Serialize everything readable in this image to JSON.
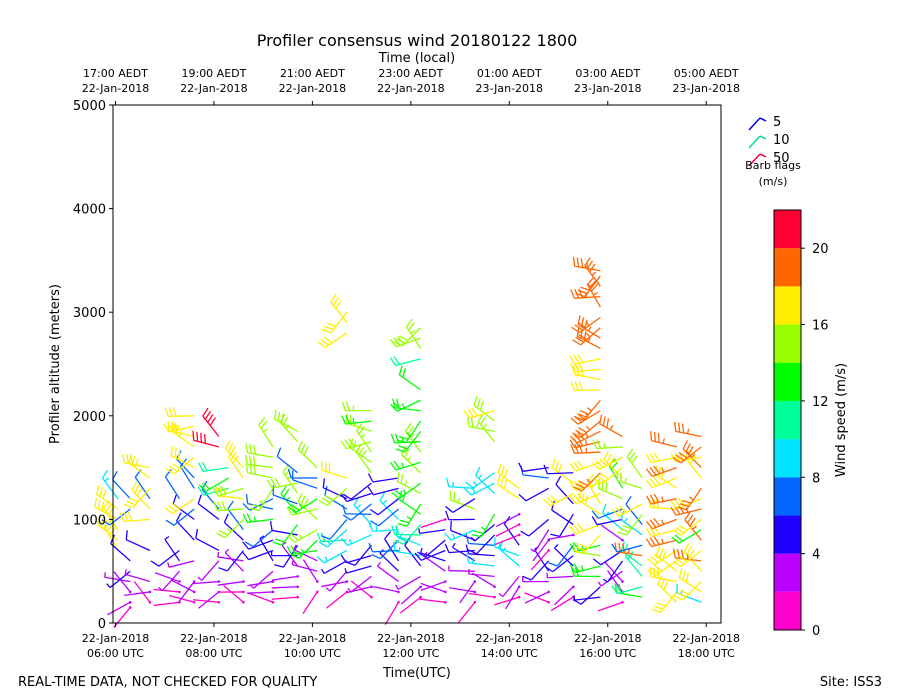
{
  "chart_data": {
    "type": "wind-barb-time-height",
    "title": "Profiler consensus wind 20180122 1800",
    "top_axis_label": "Time (local)",
    "top_ticks": [
      {
        "t": 6,
        "line1": "17:00 AEDT",
        "line2": "22-Jan-2018"
      },
      {
        "t": 8,
        "line1": "19:00 AEDT",
        "line2": "22-Jan-2018"
      },
      {
        "t": 10,
        "line1": "21:00 AEDT",
        "line2": "22-Jan-2018"
      },
      {
        "t": 12,
        "line1": "23:00 AEDT",
        "line2": "22-Jan-2018"
      },
      {
        "t": 14,
        "line1": "01:00 AEDT",
        "line2": "23-Jan-2018"
      },
      {
        "t": 16,
        "line1": "03:00 AEDT",
        "line2": "23-Jan-2018"
      },
      {
        "t": 18,
        "line1": "05:00 AEDT",
        "line2": "23-Jan-2018"
      }
    ],
    "bottom_ticks": [
      {
        "t": 6,
        "line1": "22-Jan-2018",
        "line2": "06:00 UTC"
      },
      {
        "t": 8,
        "line1": "22-Jan-2018",
        "line2": "08:00 UTC"
      },
      {
        "t": 10,
        "line1": "22-Jan-2018",
        "line2": "10:00 UTC"
      },
      {
        "t": 12,
        "line1": "22-Jan-2018",
        "line2": "12:00 UTC"
      },
      {
        "t": 14,
        "line1": "22-Jan-2018",
        "line2": "14:00 UTC"
      },
      {
        "t": 16,
        "line1": "22-Jan-2018",
        "line2": "16:00 UTC"
      },
      {
        "t": 18,
        "line1": "22-Jan-2018",
        "line2": "18:00 UTC"
      }
    ],
    "xlabel": "Time(UTC)",
    "ylabel": "Profiler altitude (meters)",
    "x_range_hours": [
      5.95,
      18.3
    ],
    "ylim": [
      0,
      5000
    ],
    "yticks": [
      0,
      1000,
      2000,
      3000,
      4000,
      5000
    ],
    "legend": {
      "entries": [
        {
          "label": "5",
          "color": "#0000ee"
        },
        {
          "label": "10",
          "color": "#00dd88"
        },
        {
          "label": "50",
          "color": "#ff0033"
        }
      ],
      "title_line1": "Barb flags",
      "title_line2": "(m/s)",
      "position": "right"
    },
    "colorbar": {
      "label": "Wind speed (m/s)",
      "range": [
        0,
        22
      ],
      "ticks": [
        0,
        4,
        8,
        12,
        16,
        20
      ],
      "bins": [
        {
          "from": 0,
          "to": 2,
          "color": "#ff00cc"
        },
        {
          "from": 2,
          "to": 4,
          "color": "#bb00ff"
        },
        {
          "from": 4,
          "to": 6,
          "color": "#2200ff"
        },
        {
          "from": 6,
          "to": 8,
          "color": "#0066ff"
        },
        {
          "from": 8,
          "to": 10,
          "color": "#00e5ff"
        },
        {
          "from": 10,
          "to": 12,
          "color": "#00ff99"
        },
        {
          "from": 12,
          "to": 14,
          "color": "#00ff00"
        },
        {
          "from": 14,
          "to": 16,
          "color": "#99ff00"
        },
        {
          "from": 16,
          "to": 18,
          "color": "#ffee00"
        },
        {
          "from": 18,
          "to": 20,
          "color": "#ff6600"
        },
        {
          "from": 20,
          "to": 22,
          "color": "#ff0033"
        }
      ]
    },
    "series": [
      {
        "t": 6.05,
        "alt": [
          700,
          800,
          900,
          1000,
          1100,
          1200
        ],
        "speed": [
          16,
          16,
          17,
          17,
          16,
          8
        ]
      },
      {
        "t": 6.3,
        "alt": [
          150,
          200,
          300,
          400,
          500,
          600,
          1100,
          1200
        ],
        "speed": [
          1,
          2,
          2,
          3,
          4,
          5,
          7,
          7
        ]
      },
      {
        "t": 6.7,
        "alt": [
          200,
          300,
          400,
          700,
          1000,
          1100,
          1200,
          1300,
          1400,
          1500
        ],
        "speed": [
          1,
          2,
          3,
          5,
          16,
          16,
          7,
          16,
          17,
          16
        ]
      },
      {
        "t": 7.3,
        "alt": [
          200,
          300,
          400,
          500,
          600,
          700,
          1200
        ],
        "speed": [
          1,
          1,
          2,
          3,
          4,
          5,
          6
        ]
      },
      {
        "t": 7.6,
        "alt": [
          200,
          300,
          400,
          600,
          800,
          1000,
          1100,
          1200,
          1300,
          1400,
          1500,
          1600,
          1700,
          1800,
          1900,
          2000
        ],
        "speed": [
          1,
          2,
          2,
          3,
          5,
          5,
          6,
          16,
          6,
          6,
          17,
          16,
          16,
          17,
          17,
          16
        ]
      },
      {
        "t": 8.1,
        "alt": [
          200,
          300,
          400,
          600,
          700,
          1000,
          1100,
          1700,
          1800
        ],
        "speed": [
          1,
          2,
          2,
          3,
          5,
          5,
          6,
          21,
          21
        ]
      },
      {
        "t": 8.3,
        "alt": [
          1300,
          1400,
          1500
        ],
        "speed": [
          11,
          12,
          11
        ]
      },
      {
        "t": 8.6,
        "alt": [
          200,
          300,
          400,
          500,
          600,
          700,
          800,
          900,
          1000,
          1100,
          1200,
          1300,
          1400,
          1500
        ],
        "speed": [
          1,
          1,
          2,
          3,
          3,
          5,
          5,
          6,
          14,
          15,
          16,
          15,
          16,
          17
        ]
      },
      {
        "t": 9.2,
        "alt": [
          200,
          300,
          400,
          500,
          600,
          700,
          800,
          900,
          1000,
          1100,
          1200,
          1300,
          1400,
          1500,
          1600,
          1700
        ],
        "speed": [
          1,
          2,
          2,
          3,
          4,
          5,
          5,
          7,
          13,
          6,
          6,
          14,
          15,
          15,
          15,
          14
        ]
      },
      {
        "t": 9.7,
        "alt": [
          250,
          350,
          450,
          550,
          650,
          750,
          850,
          950,
          1050,
          1150,
          1250,
          1350,
          1450,
          1750,
          1850
        ],
        "speed": [
          1,
          2,
          2,
          3,
          4,
          5,
          5,
          12,
          13,
          6,
          14,
          15,
          6,
          14,
          15
        ]
      },
      {
        "t": 10.1,
        "alt": [
          300,
          400,
          500,
          600,
          700,
          800,
          900,
          1000,
          1100,
          1200,
          1300,
          1400,
          1500
        ],
        "speed": [
          1,
          2,
          3,
          3,
          12,
          13,
          14,
          15,
          14,
          13,
          6,
          6,
          15
        ]
      },
      {
        "t": 10.7,
        "alt": [
          300,
          400,
          500,
          600,
          700,
          800,
          900,
          1000,
          1100,
          1200,
          1300,
          1400,
          2800,
          2900,
          3000
        ],
        "speed": [
          1,
          2,
          3,
          4,
          9,
          10,
          8,
          7,
          6,
          5,
          15,
          16,
          17,
          17,
          16
        ]
      },
      {
        "t": 11.2,
        "alt": [
          250,
          350,
          450,
          550,
          650,
          750,
          850,
          950,
          1050,
          1150,
          1250,
          1350,
          1450,
          1550,
          1650,
          1750,
          1850,
          1950,
          2050
        ],
        "speed": [
          1,
          2,
          3,
          4,
          5,
          5,
          8,
          9,
          6,
          6,
          5,
          5,
          15,
          14,
          14,
          15,
          14,
          13,
          14
        ]
      },
      {
        "t": 11.75,
        "alt": [
          200,
          300,
          400,
          500,
          600,
          700,
          800,
          900,
          1000,
          1100,
          1200,
          1300,
          1400
        ],
        "speed": [
          1,
          2,
          3,
          4,
          5,
          6,
          7,
          8,
          9,
          6,
          5,
          5,
          5
        ]
      },
      {
        "t": 12.2,
        "alt": [
          250,
          350,
          450,
          550,
          650,
          750,
          850,
          950,
          1050,
          1150,
          1250,
          1350,
          1450,
          1550,
          1650,
          1750,
          1850,
          1950,
          2050,
          2150,
          2250,
          2550,
          2650,
          2750,
          2850
        ],
        "speed": [
          1,
          2,
          3,
          5,
          8,
          9,
          10,
          11,
          12,
          13,
          14,
          13,
          14,
          13,
          14,
          13,
          12,
          13,
          12,
          13,
          12,
          11,
          14,
          15,
          15
        ]
      },
      {
        "t": 12.7,
        "alt": [
          200,
          300,
          400,
          500,
          600,
          700,
          800,
          900,
          1000
        ],
        "speed": [
          1,
          2,
          2,
          3,
          4,
          5,
          5,
          4,
          1
        ]
      },
      {
        "t": 13.3,
        "alt": [
          200,
          300,
          400,
          500,
          600,
          700,
          800,
          900,
          1000,
          1100,
          1200,
          1300
        ],
        "speed": [
          1,
          2,
          2,
          3,
          4,
          5,
          5,
          8,
          5,
          14,
          5,
          8
        ]
      },
      {
        "t": 13.7,
        "alt": [
          250,
          350,
          450,
          550,
          650,
          750,
          850,
          950,
          1050,
          1250,
          1350,
          1450,
          1750,
          1850,
          1950,
          2050
        ],
        "speed": [
          1,
          2,
          3,
          8,
          5,
          6,
          5,
          4,
          13,
          8,
          8,
          8,
          14,
          14,
          15,
          16
        ]
      },
      {
        "t": 14.2,
        "alt": [
          250,
          350,
          450,
          550,
          650,
          750,
          850,
          950,
          1050,
          1200,
          1300
        ],
        "speed": [
          1,
          2,
          3,
          8,
          8,
          5,
          1,
          1,
          2,
          17,
          16
        ]
      },
      {
        "t": 14.8,
        "alt": [
          200,
          300,
          400,
          500,
          600,
          700,
          800,
          900,
          1000,
          1300,
          1400,
          1500
        ],
        "speed": [
          1,
          2,
          3,
          4,
          5,
          1,
          2,
          3,
          5,
          5,
          6,
          5
        ]
      },
      {
        "t": 15.3,
        "alt": [
          250,
          350,
          450,
          550,
          650,
          750,
          850,
          950,
          1050,
          1150,
          1250,
          1350,
          1450
        ],
        "speed": [
          1,
          2,
          3,
          4,
          5,
          6,
          2,
          5,
          5,
          5,
          16,
          16,
          5
        ]
      },
      {
        "t": 15.85,
        "alt": [
          250,
          350,
          450,
          550,
          650,
          750,
          850,
          950,
          1050,
          1150,
          1250,
          1350,
          1450,
          1550,
          1650,
          1750,
          1850,
          1950,
          2050,
          2150,
          2250,
          2350,
          2450,
          2550,
          2650,
          2750,
          2850,
          2950,
          3050,
          3150,
          3250,
          3350,
          3400
        ],
        "speed": [
          4,
          5,
          12,
          13,
          14,
          13,
          16,
          16,
          17,
          17,
          16,
          17,
          18,
          16,
          18,
          19,
          18,
          19,
          18,
          19,
          17,
          16,
          17,
          17,
          19,
          19,
          19,
          19,
          19,
          19,
          19,
          19,
          19
        ]
      },
      {
        "t": 16.3,
        "alt": [
          200,
          300,
          400,
          500,
          600,
          700,
          800,
          900,
          1000,
          1100,
          1200,
          1300,
          1400,
          1500,
          1600,
          1700,
          1800
        ],
        "speed": [
          1,
          2,
          2,
          3,
          4,
          5,
          2,
          8,
          5,
          6,
          15,
          12,
          16,
          16,
          17,
          14,
          18
        ]
      },
      {
        "t": 16.7,
        "alt": [
          250,
          350,
          450,
          550,
          650,
          750,
          850,
          950,
          1050,
          1150,
          1300,
          1400
        ],
        "speed": [
          12,
          10,
          11,
          10,
          19,
          6,
          8,
          6,
          15,
          16,
          14,
          15
        ]
      },
      {
        "t": 17.4,
        "alt": [
          200,
          300,
          400,
          500,
          600,
          700,
          800,
          900,
          1000,
          1100,
          1200,
          1300,
          1400,
          1500,
          1600,
          1700
        ],
        "speed": [
          17,
          17,
          17,
          17,
          17,
          17,
          19,
          17,
          19,
          17,
          19,
          17,
          17,
          19,
          17,
          19
        ]
      },
      {
        "t": 17.9,
        "alt": [
          200,
          300,
          400,
          500,
          600,
          700,
          800,
          900,
          1000,
          1100,
          1200,
          1300,
          1400,
          1500,
          1600,
          1700,
          1800
        ],
        "speed": [
          8,
          17,
          17,
          17,
          19,
          17,
          19,
          12,
          17,
          19,
          17,
          19,
          17,
          19,
          17,
          19,
          19
        ]
      }
    ]
  },
  "footer": {
    "left_note": "REAL-TIME DATA, NOT CHECKED FOR QUALITY",
    "site": "Site: ISS3"
  }
}
